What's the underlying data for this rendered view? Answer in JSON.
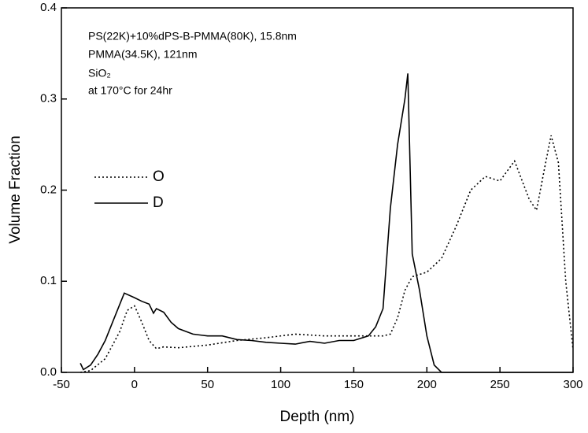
{
  "chart_data": {
    "type": "line",
    "xlabel": "Depth (nm)",
    "ylabel": "Volume Fraction",
    "annotations": [
      "PS(22K)+10%dPS-B-PMMA(80K), 15.8nm",
      "PMMA(34.5K), 121nm",
      "SiO₂",
      "at 170°C for 24hr"
    ],
    "xlim": [
      -50,
      300
    ],
    "xticks": [
      -50,
      0,
      50,
      100,
      150,
      200,
      250,
      300
    ],
    "ylim": [
      0,
      0.4
    ],
    "yticks": [
      {
        "value": 0,
        "label": "0.0"
      },
      0.1,
      0.2,
      0.3,
      0.4
    ],
    "series": [
      {
        "name": "O",
        "color": "#000000",
        "dash": "dotted",
        "x": [
          -37,
          -30,
          -20,
          -10,
          -5,
          0,
          5,
          10,
          15,
          20,
          30,
          50,
          70,
          90,
          110,
          130,
          150,
          160,
          170,
          175,
          180,
          185,
          190,
          200,
          210,
          220,
          230,
          240,
          250,
          260,
          270,
          275,
          280,
          285,
          290,
          295,
          300
        ],
        "values": [
          0,
          0.002,
          0.015,
          0.045,
          0.068,
          0.073,
          0.055,
          0.035,
          0.026,
          0.028,
          0.027,
          0.03,
          0.035,
          0.038,
          0.042,
          0.04,
          0.04,
          0.04,
          0.04,
          0.042,
          0.06,
          0.09,
          0.105,
          0.11,
          0.125,
          0.16,
          0.2,
          0.215,
          0.21,
          0.232,
          0.19,
          0.178,
          0.22,
          0.26,
          0.23,
          0.1,
          0.025
        ]
      },
      {
        "name": "D",
        "color": "#000000",
        "dash": "solid",
        "x": [
          -37,
          -35,
          -30,
          -25,
          -20,
          -15,
          -10,
          -7,
          0,
          5,
          10,
          13,
          15,
          20,
          25,
          30,
          40,
          50,
          60,
          70,
          80,
          90,
          100,
          110,
          120,
          130,
          140,
          150,
          160,
          165,
          170,
          175,
          180,
          185,
          187,
          190,
          195,
          200,
          205,
          210,
          250,
          300
        ],
        "values": [
          0.01,
          0.003,
          0.008,
          0.02,
          0.035,
          0.055,
          0.075,
          0.087,
          0.082,
          0.078,
          0.075,
          0.065,
          0.07,
          0.066,
          0.055,
          0.048,
          0.042,
          0.04,
          0.04,
          0.036,
          0.035,
          0.033,
          0.032,
          0.031,
          0.034,
          0.032,
          0.035,
          0.035,
          0.04,
          0.05,
          0.07,
          0.18,
          0.25,
          0.3,
          0.328,
          0.13,
          0.09,
          0.04,
          0.008,
          0,
          0,
          0
        ]
      }
    ]
  }
}
